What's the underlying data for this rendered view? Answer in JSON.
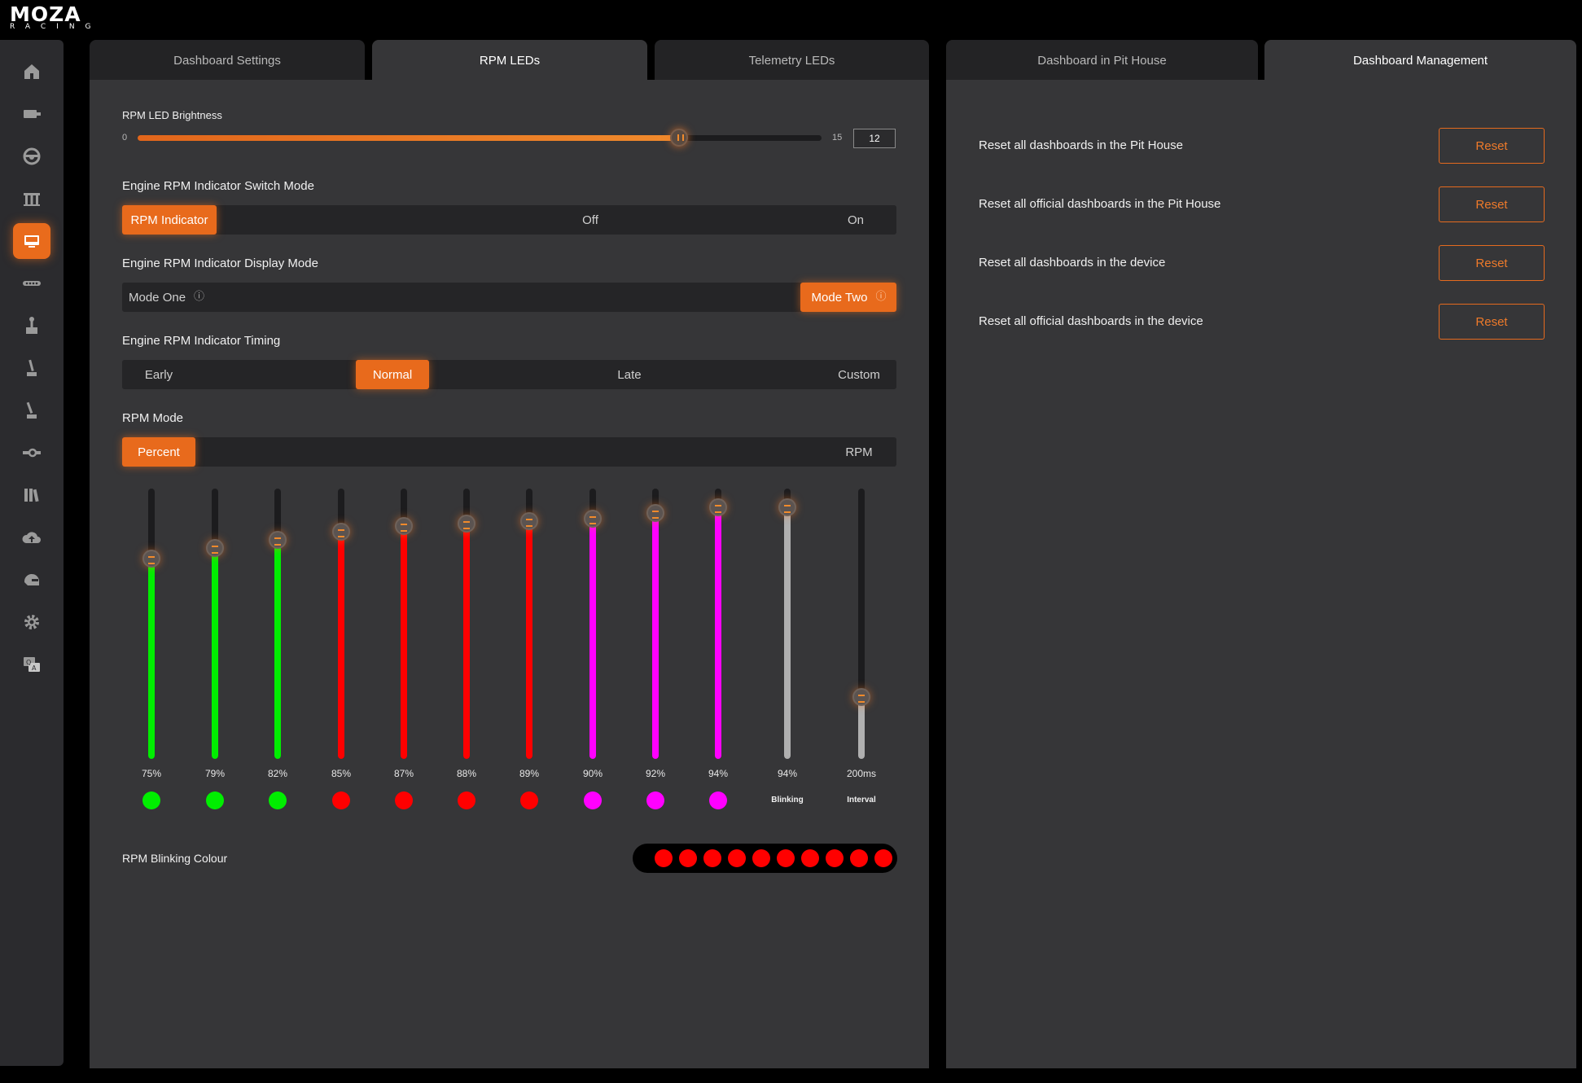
{
  "app": {
    "brand": "MOZA",
    "brand_sub": "RACING"
  },
  "sidebar": {
    "items": [
      {
        "icon": "home-icon"
      },
      {
        "icon": "wheelbase-icon"
      },
      {
        "icon": "steering-wheel-icon"
      },
      {
        "icon": "pedals-icon"
      },
      {
        "icon": "dashboard-icon",
        "active": true
      },
      {
        "icon": "shift-lights-icon"
      },
      {
        "icon": "shifter-icon"
      },
      {
        "icon": "handbrake-icon"
      },
      {
        "icon": "sequential-shifter-icon"
      },
      {
        "icon": "hub-icon"
      },
      {
        "icon": "library-icon"
      },
      {
        "icon": "cloud-upload-icon"
      },
      {
        "icon": "helmet-icon"
      },
      {
        "icon": "settings-icon"
      },
      {
        "icon": "qa-icon"
      }
    ]
  },
  "left_tabs": [
    {
      "label": "Dashboard Settings",
      "active": false
    },
    {
      "label": "RPM LEDs",
      "active": true
    },
    {
      "label": "Telemetry LEDs",
      "active": false
    }
  ],
  "right_tabs": [
    {
      "label": "Dashboard in Pit House",
      "active": false
    },
    {
      "label": "Dashboard Management",
      "active": true
    }
  ],
  "brightness": {
    "label": "RPM LED Brightness",
    "min": "0",
    "max": "15",
    "value": "12"
  },
  "switch_mode": {
    "label": "Engine RPM Indicator Switch Mode",
    "options": [
      "RPM Indicator",
      "Off",
      "On"
    ],
    "selected": "RPM Indicator"
  },
  "display_mode": {
    "label": "Engine RPM Indicator Display Mode",
    "options": [
      "Mode One",
      "Mode Two"
    ],
    "selected": "Mode Two",
    "info_glyph": "ⓘ"
  },
  "timing": {
    "label": "Engine RPM Indicator Timing",
    "options": [
      "Early",
      "Normal",
      "Late",
      "Custom"
    ],
    "selected": "Normal"
  },
  "rpm_mode": {
    "label": "RPM Mode",
    "options": [
      "Percent",
      "RPM"
    ],
    "selected": "Percent"
  },
  "leds": [
    {
      "value": "75%",
      "level": 0.74,
      "color": "#00ee00"
    },
    {
      "value": "79%",
      "level": 0.78,
      "color": "#00ee00"
    },
    {
      "value": "82%",
      "level": 0.81,
      "color": "#00ee00"
    },
    {
      "value": "85%",
      "level": 0.84,
      "color": "#ff0000"
    },
    {
      "value": "87%",
      "level": 0.86,
      "color": "#ff0000"
    },
    {
      "value": "88%",
      "level": 0.87,
      "color": "#ff0000"
    },
    {
      "value": "89%",
      "level": 0.88,
      "color": "#ff0000"
    },
    {
      "value": "90%",
      "level": 0.89,
      "color": "#ff00ff"
    },
    {
      "value": "92%",
      "level": 0.91,
      "color": "#ff00ff"
    },
    {
      "value": "94%",
      "level": 0.93,
      "color": "#ff00ff"
    }
  ],
  "blinking": {
    "value": "94%",
    "level": 0.93,
    "color": "#b0b0b0",
    "caption": "Blinking"
  },
  "interval": {
    "value": "200ms",
    "level": 0.23,
    "color": "#b0b0b0",
    "caption": "Interval"
  },
  "blink_colour": {
    "label": "RPM Blinking Colour",
    "dots": [
      "#ff0000",
      "#ff0000",
      "#ff0000",
      "#ff0000",
      "#ff0000",
      "#ff0000",
      "#ff0000",
      "#ff0000",
      "#ff0000",
      "#ff0000"
    ]
  },
  "management": {
    "rows": [
      {
        "label": "Reset all dashboards in the Pit House",
        "button": "Reset"
      },
      {
        "label": "Reset all official dashboards in the Pit House",
        "button": "Reset"
      },
      {
        "label": "Reset all dashboards in the device",
        "button": "Reset"
      },
      {
        "label": "Reset all official dashboards in the device",
        "button": "Reset"
      }
    ]
  },
  "colors": {
    "accent": "#e86a1c",
    "panel": "#363638",
    "tab_inactive": "#232325"
  }
}
